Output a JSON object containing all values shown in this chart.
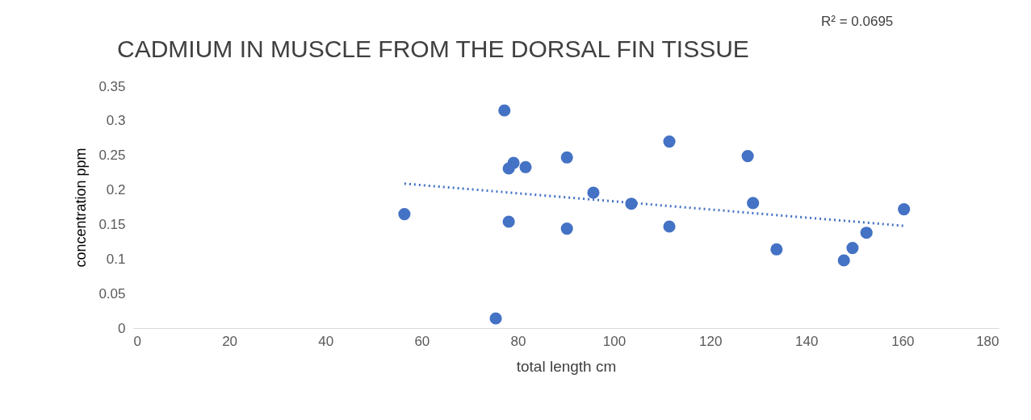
{
  "chart_data": {
    "type": "scatter",
    "title": "CADMIUM IN MUSCLE FROM THE DORSAL FIN TISSUE",
    "xlabel": "total length cm",
    "ylabel": "concentration ppm",
    "annotations": [
      "R² = 0.0695"
    ],
    "series": [
      {
        "color": "#4472c4",
        "marker": "circle",
        "x": [
          56.4,
          77.2,
          79.1,
          78.1,
          81.6,
          78.1,
          75.4,
          90.2,
          90.2,
          95.7,
          103.6,
          111.5,
          111.5,
          127.8,
          128.9,
          133.8,
          147.8,
          149.6,
          152.5,
          160.3
        ],
        "values": [
          0.165,
          0.315,
          0.239,
          0.231,
          0.233,
          0.154,
          0.014,
          0.247,
          0.144,
          0.196,
          0.18,
          0.27,
          0.147,
          0.249,
          0.181,
          0.114,
          0.098,
          0.116,
          0.138,
          0.172
        ]
      },
      {
        "type": "line",
        "color": "#4472c4",
        "line_style": "dotted",
        "x": [
          56.4,
          160.3
        ],
        "values": [
          0.209,
          0.148
        ]
      }
    ],
    "xlim": [
      0,
      180
    ],
    "xticks": [
      0,
      20,
      40,
      60,
      80,
      100,
      120,
      140,
      160,
      180
    ],
    "ylim": [
      0,
      0.35
    ],
    "yticks": [
      0,
      0.05,
      0.1,
      0.15,
      0.2,
      0.25,
      0.3,
      0.35
    ],
    "grid": false
  }
}
